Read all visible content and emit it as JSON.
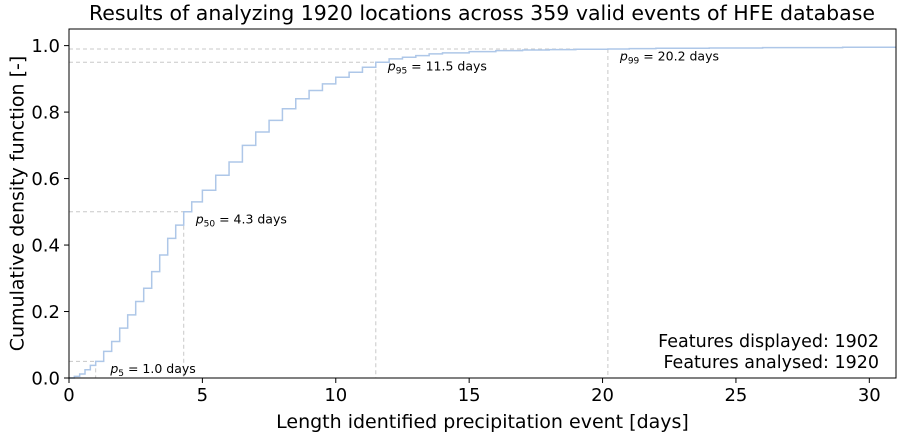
{
  "chart_data": {
    "type": "line",
    "title": "Results of analyzing 1920 locations across 359 valid events of HFE database",
    "xlabel": "Length identified precipitation event [days]",
    "ylabel": "Cumulative density function [-]",
    "xlim": [
      0,
      31
    ],
    "ylim": [
      0,
      1.05
    ],
    "grid": false,
    "x_ticks": [
      0,
      5,
      10,
      15,
      20,
      25,
      30
    ],
    "y_ticks": [
      0.0,
      0.2,
      0.4,
      0.6,
      0.8,
      1.0
    ],
    "x_tick_labels": [
      "0",
      "5",
      "10",
      "15",
      "20",
      "25",
      "30"
    ],
    "y_tick_labels": [
      "0.0",
      "0.2",
      "0.4",
      "0.6",
      "0.8",
      "1.0"
    ],
    "line_color": "#aec7e8",
    "ref_line_color": "#c8c8c8",
    "series": [
      {
        "x": [
          0.0,
          0.2,
          0.4,
          0.6,
          0.8,
          1.0,
          1.3,
          1.6,
          1.9,
          2.2,
          2.5,
          2.8,
          3.1,
          3.4,
          3.7,
          4.0,
          4.3,
          4.6,
          5.0,
          5.5,
          6.0,
          6.5,
          7.0,
          7.5,
          8.0,
          8.5,
          9.0,
          9.5,
          10.0,
          10.5,
          11.0,
          11.5,
          12.0,
          12.5,
          13.0,
          13.5,
          14.0,
          15.0,
          16.0,
          17.0,
          18.0,
          19.0,
          20.2,
          21.0,
          22.0,
          23.0,
          24.0,
          25.0,
          26.0,
          27.0,
          28.0,
          29.0,
          30.0,
          31.0
        ],
        "y": [
          0.0,
          0.005,
          0.012,
          0.025,
          0.038,
          0.05,
          0.08,
          0.11,
          0.15,
          0.19,
          0.23,
          0.27,
          0.32,
          0.37,
          0.42,
          0.46,
          0.5,
          0.53,
          0.565,
          0.61,
          0.65,
          0.7,
          0.74,
          0.775,
          0.81,
          0.84,
          0.865,
          0.885,
          0.905,
          0.92,
          0.935,
          0.95,
          0.96,
          0.965,
          0.97,
          0.975,
          0.978,
          0.982,
          0.985,
          0.987,
          0.988,
          0.989,
          0.99,
          0.991,
          0.992,
          0.992,
          0.993,
          0.993,
          0.994,
          0.994,
          0.994,
          0.995,
          0.995,
          0.995
        ]
      }
    ],
    "percentiles": [
      {
        "label": "p",
        "sub": "5",
        "text": " = 1.0 days",
        "x": 1.0,
        "y": 0.05,
        "label_x": 1.55,
        "label_y": 0.015
      },
      {
        "label": "p",
        "sub": "50",
        "text": " = 4.3 days",
        "x": 4.3,
        "y": 0.5,
        "label_x": 4.75,
        "label_y": 0.465
      },
      {
        "label": "p",
        "sub": "95",
        "text": " = 11.5 days",
        "x": 11.5,
        "y": 0.95,
        "label_x": 11.95,
        "label_y": 0.925
      },
      {
        "label": "p",
        "sub": "99",
        "text": " = 20.2 days",
        "x": 20.2,
        "y": 0.99,
        "label_x": 20.65,
        "label_y": 0.955
      }
    ],
    "annotations": {
      "features_displayed": "Features displayed: 1902",
      "features_analysed": "Features analysed: 1920"
    }
  }
}
